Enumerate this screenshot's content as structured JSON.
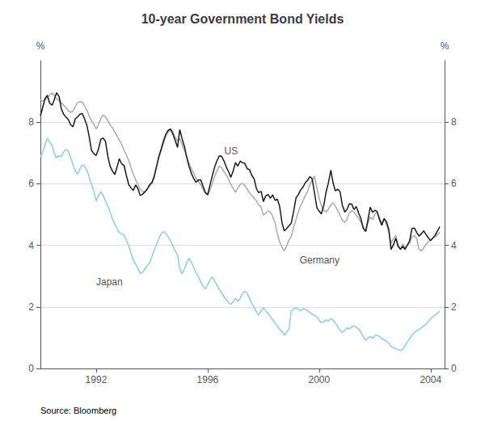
{
  "chart_data": {
    "type": "line",
    "title": "10-year Government Bond Yields",
    "ylabel": "%",
    "y2label": "%",
    "source": "Source: Bloomberg",
    "xlim": [
      1990.0,
      2004.5
    ],
    "xticks": [
      1992,
      1996,
      2000,
      2004
    ],
    "ylim": [
      0,
      10
    ],
    "yticks": [
      0,
      2,
      4,
      6,
      8
    ],
    "y2lim": [
      0,
      10
    ],
    "y2ticks": [
      0,
      2,
      4,
      6,
      8
    ],
    "grid": true,
    "x": [
      1990.0,
      1990.08,
      1990.17,
      1990.25,
      1990.33,
      1990.42,
      1990.5,
      1990.58,
      1990.67,
      1990.75,
      1990.83,
      1990.92,
      1991.0,
      1991.08,
      1991.17,
      1991.25,
      1991.33,
      1991.42,
      1991.5,
      1991.58,
      1991.67,
      1991.75,
      1991.83,
      1991.92,
      1992.0,
      1992.08,
      1992.17,
      1992.25,
      1992.33,
      1992.42,
      1992.5,
      1992.58,
      1992.67,
      1992.75,
      1992.83,
      1992.92,
      1993.0,
      1993.08,
      1993.17,
      1993.25,
      1993.33,
      1993.42,
      1993.5,
      1993.58,
      1993.67,
      1993.75,
      1993.83,
      1993.92,
      1994.0,
      1994.08,
      1994.17,
      1994.25,
      1994.33,
      1994.42,
      1994.5,
      1994.58,
      1994.67,
      1994.75,
      1994.83,
      1994.92,
      1995.0,
      1995.08,
      1995.17,
      1995.25,
      1995.33,
      1995.42,
      1995.5,
      1995.58,
      1995.67,
      1995.75,
      1995.83,
      1995.92,
      1996.0,
      1996.08,
      1996.17,
      1996.25,
      1996.33,
      1996.42,
      1996.5,
      1996.58,
      1996.67,
      1996.75,
      1996.83,
      1996.92,
      1997.0,
      1997.08,
      1997.17,
      1997.25,
      1997.33,
      1997.42,
      1997.5,
      1997.58,
      1997.67,
      1997.75,
      1997.83,
      1997.92,
      1998.0,
      1998.08,
      1998.17,
      1998.25,
      1998.33,
      1998.42,
      1998.5,
      1998.58,
      1998.67,
      1998.75,
      1998.83,
      1998.92,
      1999.0,
      1999.08,
      1999.17,
      1999.25,
      1999.33,
      1999.42,
      1999.5,
      1999.58,
      1999.67,
      1999.75,
      1999.83,
      1999.92,
      2000.0,
      2000.08,
      2000.17,
      2000.25,
      2000.33,
      2000.42,
      2000.5,
      2000.58,
      2000.67,
      2000.75,
      2000.83,
      2000.92,
      2001.0,
      2001.08,
      2001.17,
      2001.25,
      2001.33,
      2001.42,
      2001.5,
      2001.58,
      2001.67,
      2001.75,
      2001.83,
      2001.92,
      2002.0,
      2002.08,
      2002.17,
      2002.25,
      2002.33,
      2002.42,
      2002.5,
      2002.58,
      2002.67,
      2002.75,
      2002.83,
      2002.92,
      2003.0,
      2003.08,
      2003.17,
      2003.25,
      2003.33,
      2003.42,
      2003.5,
      2003.58,
      2003.67,
      2003.75,
      2003.83,
      2003.92,
      2004.0,
      2004.17,
      2004.33
    ],
    "series": [
      {
        "name": "Germany",
        "color": "#aaaaaa",
        "values": [
          8.74,
          8.68,
          8.72,
          8.8,
          8.88,
          8.95,
          8.86,
          8.76,
          8.71,
          8.64,
          8.55,
          8.47,
          8.37,
          8.32,
          8.36,
          8.51,
          8.63,
          8.67,
          8.65,
          8.53,
          8.38,
          8.21,
          8.05,
          7.92,
          7.78,
          7.92,
          8.12,
          8.24,
          8.18,
          8.04,
          7.91,
          7.82,
          7.68,
          7.55,
          7.42,
          7.28,
          7.08,
          6.95,
          6.75,
          6.52,
          6.31,
          6.12,
          5.98,
          5.82,
          5.74,
          5.71,
          5.84,
          5.93,
          6.02,
          6.28,
          6.59,
          6.85,
          7.08,
          7.32,
          7.54,
          7.68,
          7.75,
          7.68,
          7.52,
          7.38,
          7.48,
          7.28,
          7.08,
          6.88,
          6.67,
          6.48,
          6.35,
          6.18,
          6.07,
          5.98,
          5.82,
          5.69,
          5.62,
          5.78,
          6.01,
          6.24,
          6.42,
          6.57,
          6.52,
          6.41,
          6.28,
          6.15,
          5.98,
          5.84,
          5.72,
          5.86,
          5.98,
          6.01,
          5.94,
          5.82,
          5.71,
          5.62,
          5.54,
          5.43,
          5.31,
          5.24,
          4.98,
          5.04,
          5.12,
          5.08,
          4.95,
          4.72,
          4.38,
          4.12,
          3.93,
          3.82,
          3.98,
          4.17,
          4.28,
          4.57,
          4.84,
          5.08,
          5.28,
          5.44,
          5.62,
          5.74,
          5.98,
          6.12,
          6.24,
          5.86,
          5.53,
          5.28,
          5.14,
          5.08,
          5.18,
          5.32,
          5.38,
          5.28,
          5.12,
          4.98,
          4.82,
          4.74,
          4.85,
          5.05,
          5.12,
          5.08,
          4.98,
          4.88,
          4.74,
          4.62,
          4.47,
          4.72,
          4.92,
          4.84,
          5.02,
          5.08,
          4.88,
          4.72,
          4.88,
          4.68,
          4.42,
          4.07,
          4.22,
          4.32,
          4.02,
          3.87,
          4.05,
          3.92,
          4.02,
          4.08,
          4.28,
          4.32,
          4.22,
          3.87,
          3.82,
          3.92,
          4.02,
          4.12,
          4.18,
          4.28,
          4.42
        ]
      },
      {
        "name": "Japan",
        "color": "#87ceeb",
        "values": [
          6.87,
          7.02,
          7.27,
          7.48,
          7.35,
          7.24,
          6.98,
          6.84,
          6.92,
          6.87,
          7.04,
          7.12,
          7.06,
          6.87,
          6.62,
          6.42,
          6.31,
          6.48,
          6.62,
          6.57,
          6.44,
          6.21,
          5.98,
          5.74,
          5.44,
          5.62,
          5.74,
          5.62,
          5.45,
          5.28,
          5.08,
          4.87,
          4.68,
          4.54,
          4.42,
          4.38,
          4.32,
          4.18,
          3.98,
          3.74,
          3.52,
          3.38,
          3.24,
          3.08,
          3.12,
          3.24,
          3.34,
          3.44,
          3.64,
          3.84,
          4.04,
          4.22,
          4.38,
          4.45,
          4.38,
          4.28,
          4.14,
          3.98,
          3.82,
          3.68,
          3.24,
          3.08,
          3.24,
          3.44,
          3.58,
          3.44,
          3.28,
          3.12,
          2.98,
          2.82,
          2.68,
          2.58,
          2.72,
          2.87,
          2.98,
          2.84,
          2.72,
          2.57,
          2.45,
          2.34,
          2.24,
          2.14,
          2.08,
          2.18,
          2.28,
          2.18,
          2.28,
          2.44,
          2.51,
          2.44,
          2.28,
          2.12,
          1.98,
          1.84,
          1.74,
          1.87,
          1.98,
          1.88,
          1.78,
          1.68,
          1.58,
          1.48,
          1.38,
          1.28,
          1.18,
          1.08,
          1.18,
          1.28,
          1.87,
          1.92,
          1.98,
          1.92,
          1.87,
          1.94,
          1.92,
          1.88,
          1.82,
          1.77,
          1.72,
          1.67,
          1.57,
          1.48,
          1.52,
          1.58,
          1.54,
          1.62,
          1.57,
          1.47,
          1.37,
          1.24,
          1.17,
          1.24,
          1.32,
          1.28,
          1.35,
          1.38,
          1.34,
          1.28,
          1.18,
          1.04,
          0.92,
          0.98,
          1.04,
          0.98,
          1.07,
          1.08,
          1.04,
          0.96,
          0.94,
          0.88,
          0.82,
          0.72,
          0.67,
          0.64,
          0.62,
          0.58,
          0.62,
          0.74,
          0.87,
          0.97,
          1.08,
          1.18,
          1.22,
          1.27,
          1.32,
          1.38,
          1.44,
          1.52,
          1.62,
          1.74,
          1.87
        ]
      },
      {
        "name": "US",
        "color": "#1a1a1a",
        "values": [
          8.21,
          8.47,
          8.78,
          8.87,
          8.62,
          8.55,
          8.74,
          8.96,
          8.83,
          8.44,
          8.26,
          8.16,
          8.09,
          7.92,
          7.85,
          8.11,
          8.17,
          8.26,
          8.28,
          8.12,
          7.89,
          7.53,
          7.09,
          6.97,
          6.92,
          7.12,
          7.45,
          7.48,
          7.39,
          6.89,
          6.57,
          6.42,
          6.3,
          6.54,
          6.81,
          6.64,
          6.6,
          6.28,
          5.97,
          5.87,
          5.78,
          5.96,
          5.84,
          5.62,
          5.66,
          5.74,
          5.82,
          5.97,
          6.04,
          6.21,
          6.57,
          6.89,
          7.12,
          7.41,
          7.61,
          7.73,
          7.78,
          7.62,
          7.42,
          7.18,
          7.76,
          7.47,
          7.2,
          6.86,
          6.57,
          6.33,
          6.17,
          6.05,
          6.12,
          6.13,
          5.93,
          5.71,
          5.65,
          5.94,
          6.27,
          6.54,
          6.74,
          6.91,
          6.89,
          6.75,
          6.54,
          6.39,
          6.21,
          6.43,
          6.69,
          6.57,
          6.74,
          6.68,
          6.67,
          6.49,
          6.46,
          6.28,
          6.15,
          5.84,
          5.71,
          5.75,
          5.42,
          5.6,
          5.65,
          5.53,
          5.64,
          5.46,
          5.5,
          5.28,
          4.72,
          4.47,
          4.54,
          4.64,
          4.72,
          5.08,
          5.54,
          5.64,
          5.79,
          5.89,
          6.03,
          6.11,
          6.23,
          6.16,
          5.72,
          5.22,
          5.11,
          5.02,
          5.32,
          5.74,
          6.02,
          6.44,
          6.03,
          5.77,
          5.82,
          5.74,
          5.31,
          5.08,
          5.17,
          5.35,
          5.34,
          5.16,
          5.26,
          5.04,
          4.86,
          4.55,
          4.45,
          4.82,
          5.24,
          5.07,
          5.14,
          5.1,
          4.82,
          4.65,
          4.87,
          4.75,
          4.51,
          3.87,
          4.03,
          4.23,
          3.97,
          3.87,
          3.97,
          3.87,
          4.01,
          4.16,
          4.55,
          4.56,
          4.42,
          4.3,
          4.38,
          4.47,
          4.36,
          4.24,
          4.15,
          4.34,
          4.61
        ]
      }
    ],
    "annotations": [
      {
        "text": "US",
        "x": 1996.6,
        "y": 6.9,
        "color": "#1a1a1a"
      },
      {
        "text": "Germany",
        "x": 1999.3,
        "y": 3.35,
        "color": "#1a1a1a"
      },
      {
        "text": "Japan",
        "x": 1992.0,
        "y": 2.65,
        "color": "#1a1a1a"
      }
    ]
  }
}
